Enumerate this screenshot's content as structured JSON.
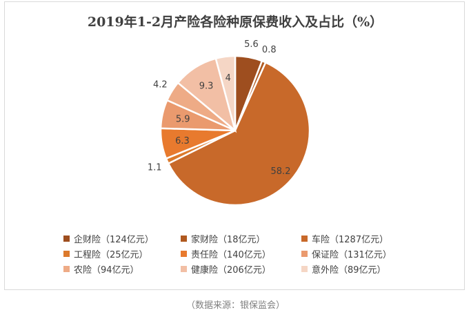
{
  "chart_data": {
    "type": "pie",
    "title": "2019年1-2月产险各险种原保费收入及占比（%）",
    "slices": [
      {
        "name": "企财险（124亿元）",
        "value": 5.6,
        "label": "5.6",
        "color": "#9e4e1f"
      },
      {
        "name": "家财险（18亿元）",
        "value": 0.8,
        "label": "0.8",
        "color": "#b0591f"
      },
      {
        "name": "车险（1287亿元）",
        "value": 58.2,
        "label": "58.2",
        "color": "#c8692a"
      },
      {
        "name": "工程险（25亿元）",
        "value": 1.1,
        "label": "1.1",
        "color": "#dc7a2c"
      },
      {
        "name": "责任险（140亿元）",
        "value": 6.3,
        "label": "6.3",
        "color": "#e87a2e"
      },
      {
        "name": "保证险（131亿元）",
        "value": 5.9,
        "label": "5.9",
        "color": "#ea9a6e"
      },
      {
        "name": "农险（94亿元）",
        "value": 4.2,
        "label": "4.2",
        "color": "#eeab86"
      },
      {
        "name": "健康险（206亿元）",
        "value": 9.3,
        "label": "9.3",
        "color": "#f2bfa5"
      },
      {
        "name": "意外险（89亿元）",
        "value": 4,
        "label": "4",
        "color": "#f5d6c5"
      }
    ],
    "legend_position": "bottom"
  },
  "source": "（数据来源：银保监会）"
}
